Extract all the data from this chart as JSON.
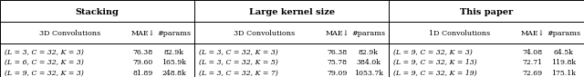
{
  "title_stacking": "Stacking",
  "title_large": "Large kernel size",
  "title_this": "This paper",
  "header": [
    "3D Convolutions",
    "MAE↓",
    "#params",
    "3D Convolutions",
    "MAE↓",
    "#params",
    "1D Convolutions",
    "MAE↓",
    "#params"
  ],
  "rows": [
    [
      "(L = 3, C = 32, K = 3)",
      "76.38",
      "82.9k",
      "(L = 3, C = 32, K = 3)",
      "76.38",
      "82.9k",
      "(L = 9, C = 32, K = 3)",
      "74.08",
      "64.5k"
    ],
    [
      "(L = 6, C = 32, K = 3)",
      "79.60",
      "165.9k",
      "(L = 3, C = 32, K = 5)",
      "75.78",
      "384.0k",
      "(L = 9, C = 32, K = 13)",
      "72.71",
      "119.8k"
    ],
    [
      "(L = 9, C = 32, K = 3)",
      "81.89",
      "248.8k",
      "(L = 3, C = 32, K = 7)",
      "79.09",
      "1053.7k",
      "(L = 9, C = 32, K = 19)",
      "72.69",
      "175.1k"
    ]
  ],
  "sec_bounds": [
    0.0,
    0.333,
    0.666,
    1.0
  ],
  "fontsize_title": 7.0,
  "fontsize_header": 5.8,
  "fontsize_data": 5.6
}
